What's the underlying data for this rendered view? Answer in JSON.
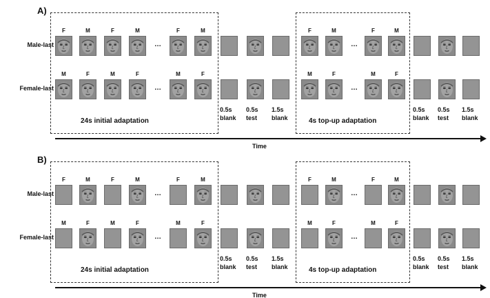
{
  "panels": [
    {
      "label": "A)",
      "rows": [
        {
          "label": "Male-last",
          "adapt_labels": [
            "F",
            "M",
            "F",
            "M",
            "F",
            "M"
          ],
          "topup_labels": [
            "F",
            "M",
            "F",
            "M"
          ]
        },
        {
          "label": "Female-last",
          "adapt_labels": [
            "M",
            "F",
            "M",
            "F",
            "M",
            "F"
          ],
          "topup_labels": [
            "M",
            "F",
            "M",
            "F"
          ]
        }
      ],
      "adapt_faces": [
        true,
        true,
        true,
        true,
        true,
        true
      ],
      "topup_faces": [
        true,
        true,
        true,
        true
      ],
      "ellipsis": "…",
      "initial_label": "24s initial adaptation",
      "topup_label": "4s top-up adaptation",
      "durations": [
        {
          "value": "0.5s",
          "kind": "blank"
        },
        {
          "value": "0.5s",
          "kind": "test"
        },
        {
          "value": "1.5s",
          "kind": "blank"
        }
      ],
      "axis_label": "Time"
    },
    {
      "label": "B)",
      "rows": [
        {
          "label": "Male-last",
          "adapt_labels": [
            "F",
            "M",
            "F",
            "M",
            "F",
            "M"
          ],
          "topup_labels": [
            "F",
            "M",
            "F",
            "M"
          ]
        },
        {
          "label": "Female-last",
          "adapt_labels": [
            "M",
            "F",
            "M",
            "F",
            "M",
            "F"
          ],
          "topup_labels": [
            "M",
            "F",
            "M",
            "F"
          ]
        }
      ],
      "adapt_faces": [
        false,
        true,
        false,
        true,
        false,
        true
      ],
      "topup_faces": [
        false,
        true,
        false,
        true
      ],
      "ellipsis": "…",
      "initial_label": "24s initial adaptation",
      "topup_label": "4s top-up adaptation",
      "durations": [
        {
          "value": "0.5s",
          "kind": "blank"
        },
        {
          "value": "0.5s",
          "kind": "test"
        },
        {
          "value": "1.5s",
          "kind": "blank"
        }
      ],
      "axis_label": "Time"
    }
  ],
  "colors": {
    "stimulus": "#949494",
    "face": "#8a8a8a",
    "ink": "#111111"
  },
  "icons": {
    "face": "face-icon",
    "blank": "blank-square"
  }
}
